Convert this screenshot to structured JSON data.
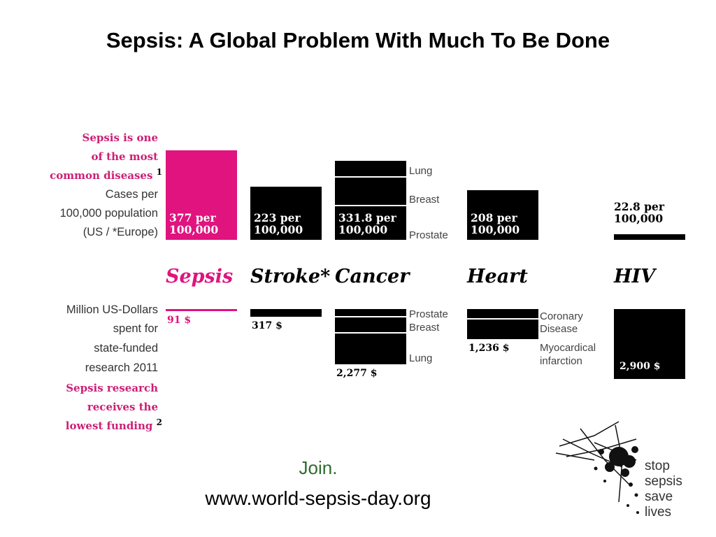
{
  "title": "Sepsis: A Global Problem With Much To Be Done",
  "left_labels": {
    "top_pink_1": "Sepsis is one",
    "top_pink_2": "of the most",
    "top_pink_3": "common diseases",
    "top_sup": "1",
    "cases_1": "Cases per",
    "cases_2": "100,000 population",
    "cases_3": "(US / *Europe)",
    "funding_1": "Million US-Dollars",
    "funding_2": "spent for",
    "funding_3": "state-funded",
    "funding_4": "research 2011",
    "bottom_pink_1": "Sepsis research",
    "bottom_pink_2": "receives the",
    "bottom_pink_3": "lowest funding",
    "bottom_sup": "2"
  },
  "chart_data": {
    "type": "bar",
    "title": "",
    "categories": [
      "Sepsis",
      "Stroke*",
      "Cancer",
      "Heart",
      "HIV"
    ],
    "series": [
      {
        "name": "Cases per 100,000 population (US / *Europe)",
        "values": [
          377,
          223,
          331.8,
          208,
          22.8
        ],
        "labels_line1": [
          "377 per",
          "223 per",
          "331.8 per",
          "208 per",
          "22.8 per"
        ],
        "labels_line2": [
          "100,000",
          "100,000",
          "100,000",
          "100,000",
          "100,000"
        ]
      },
      {
        "name": "Million US-Dollars spent for state-funded research 2011",
        "values": [
          91,
          317,
          2277,
          1236,
          2900
        ],
        "labels": [
          "91 $",
          "317 $",
          "2,277 $",
          "1,236 $",
          "2,900 $"
        ]
      }
    ],
    "cancer_cases_subdivisions": [
      "Lung",
      "Breast",
      "Prostate"
    ],
    "cancer_funding_subdivisions": [
      "Prostate",
      "Breast",
      "Lung"
    ],
    "heart_funding_subdivisions": [
      "Coronary",
      "Disease",
      "Myocardical",
      "infarction"
    ],
    "colors": {
      "sepsis": "#e0137f",
      "other": "#000000"
    },
    "ylim_cases": [
      0,
      377
    ],
    "ylim_funding": [
      0,
      2900
    ]
  },
  "footer": {
    "join": "Join.",
    "url": "www.world-sepsis-day.org"
  },
  "logo": {
    "words": [
      "stop",
      "sepsis",
      "save",
      "lives"
    ]
  }
}
